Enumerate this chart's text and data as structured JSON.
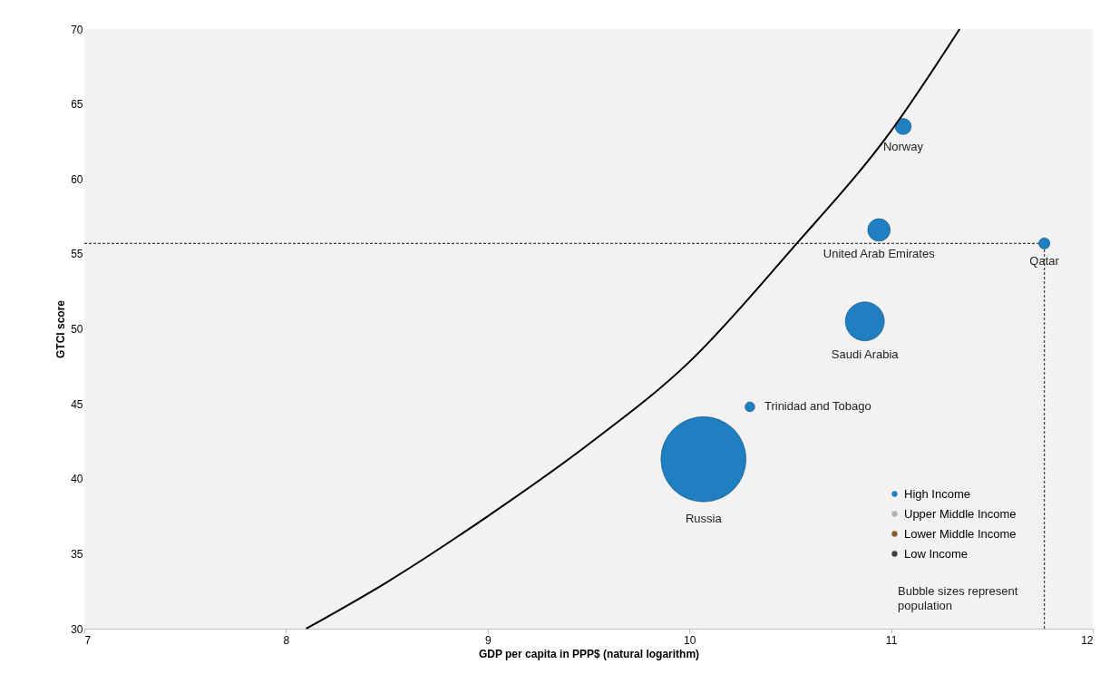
{
  "chart_data": {
    "type": "bubble",
    "xlabel": "GDP per capita in PPP$ (natural logarithm)",
    "ylabel": "GTCI score",
    "xlim": [
      7,
      12
    ],
    "xticks": [
      7,
      8,
      9,
      10,
      11,
      12
    ],
    "ylim": [
      30,
      70
    ],
    "yticks": [
      30,
      35,
      40,
      45,
      50,
      55,
      60,
      65,
      70
    ],
    "grid": false,
    "legend": "bottom right",
    "series": [
      {
        "name": "High Income",
        "color": "#1f7fc0",
        "marker": "circle",
        "x": [
          11.06,
          10.94,
          11.76,
          10.87,
          10.3,
          10.07
        ],
        "values": [
          63.5,
          56.6,
          55.7,
          50.5,
          44.8,
          41.3
        ],
        "sizes": [
          0.036,
          0.07,
          0.017,
          0.21,
          0.013,
          1
        ]
      },
      {
        "name": "Upper Middle Income",
        "color": "#b4b4b4"
      },
      {
        "name": "Lower Middle Income",
        "color": "#8b5a2b"
      },
      {
        "name": "Low Income",
        "color": "#404040"
      },
      {
        "type": "line",
        "color": "#000000",
        "line_style": "solid",
        "marker": "none",
        "x": [
          8.1,
          8.5,
          9,
          9.5,
          10,
          10.5,
          11,
          11.34
        ],
        "values": [
          30,
          33.1,
          37.5,
          42.3,
          47.8,
          55.2,
          63.2,
          70
        ]
      }
    ],
    "ref_lines": [
      {
        "axis": "y",
        "value": 55.7,
        "color": "#404040",
        "line_style": "dashed"
      },
      {
        "axis": "x",
        "value": 11.76,
        "color": "#404040",
        "line_style": "dashed"
      }
    ],
    "annotations": [
      "Norway",
      "United Arab Emirates",
      "Qatar",
      "Saudi Arabia",
      "Trinidad and Tobago",
      "Russia",
      "Bubble sizes represent\npopulation"
    ]
  }
}
